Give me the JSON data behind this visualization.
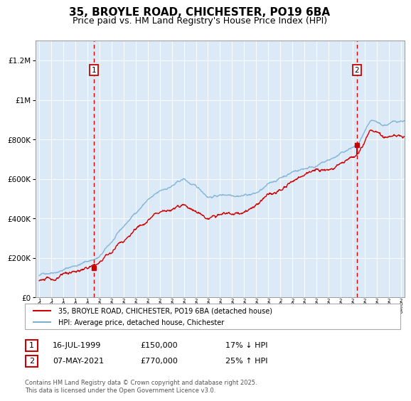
{
  "title": "35, BROYLE ROAD, CHICHESTER, PO19 6BA",
  "subtitle": "Price paid vs. HM Land Registry's House Price Index (HPI)",
  "background_color": "#dce9f7",
  "plot_bg_color": "#dce9f7",
  "x_start_year": 1995,
  "x_end_year": 2025,
  "ylim": [
    0,
    1300000
  ],
  "yticks": [
    0,
    200000,
    400000,
    600000,
    800000,
    1000000,
    1200000
  ],
  "ytick_labels": [
    "£0",
    "£200K",
    "£400K",
    "£600K",
    "£800K",
    "£1M",
    "£1.2M"
  ],
  "sale1_year": 1999.54,
  "sale1_price": 150000,
  "sale1_label": "1",
  "sale1_date": "16-JUL-1999",
  "sale2_year": 2021.35,
  "sale2_price": 770000,
  "sale2_label": "2",
  "sale2_date": "07-MAY-2021",
  "red_line_color": "#cc0000",
  "blue_line_color": "#7ab0d4",
  "vline_color": "#dd0000",
  "marker_box_color": "#cc0000",
  "legend_line1": "35, BROYLE ROAD, CHICHESTER, PO19 6BA (detached house)",
  "legend_line2": "HPI: Average price, detached house, Chichester",
  "footnote": "Contains HM Land Registry data © Crown copyright and database right 2025.\nThis data is licensed under the Open Government Licence v3.0.",
  "grid_color": "#ffffff",
  "title_fontsize": 11,
  "subtitle_fontsize": 9
}
